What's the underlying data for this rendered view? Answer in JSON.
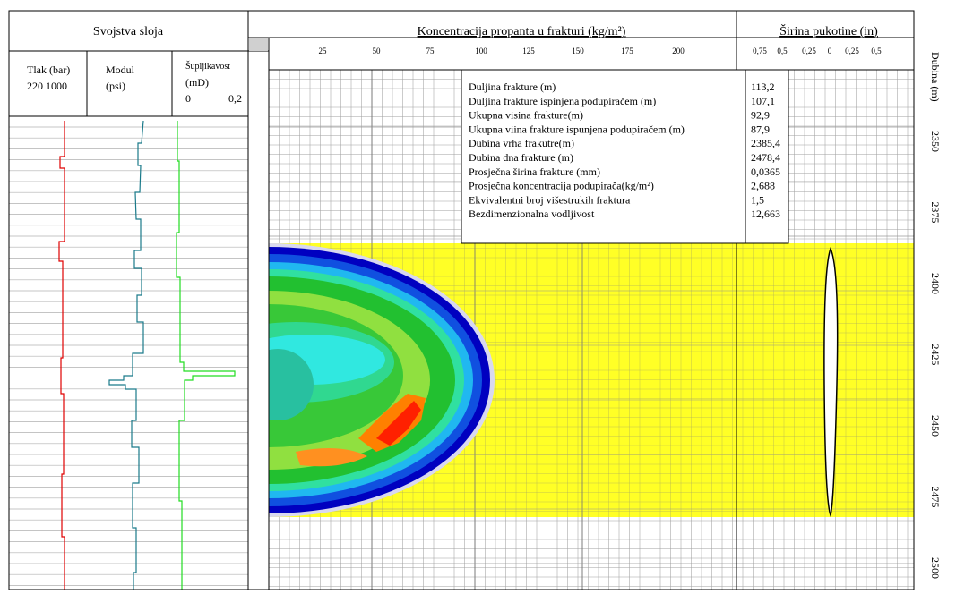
{
  "left_panel": {
    "title": "Svojstva sloja",
    "columns": [
      {
        "label": "Tlak (bar)",
        "scale": "220 1000"
      },
      {
        "label": "Modul",
        "unit": "(psi)"
      },
      {
        "label": "Šupljikavost",
        "unit": "(mD)",
        "scale_min": "0",
        "scale_max": "0,2"
      }
    ]
  },
  "concentration_panel": {
    "title": "Koncentracija propanta u frakturi (kg/m²)",
    "ticks": [
      "25",
      "50",
      "75",
      "100",
      "125",
      "150",
      "175",
      "200"
    ]
  },
  "width_panel": {
    "title": "Širina pukotine (in)",
    "ticks": [
      "0,75",
      "0,5",
      "0,25",
      "0",
      "0,25",
      "0,5"
    ]
  },
  "depth_panel": {
    "title": "Dubina (m)",
    "ticks": [
      "2350",
      "2375",
      "2400",
      "2425",
      "2450",
      "2475",
      "2500"
    ]
  },
  "summary_table": {
    "rows": [
      [
        "Duljina frakture (m)",
        "113,2"
      ],
      [
        "Duljina frakture ispinjena podupiračem (m)",
        "107,1"
      ],
      [
        "Ukupna visina frakture(m)",
        "92,9"
      ],
      [
        "Ukupna viina frakture ispunjena podupiračem (m)",
        "87,9"
      ],
      [
        "Dubina vrha frakutre(m)",
        "2385,4"
      ],
      [
        "Dubina dna frakture (m)",
        "2478,4"
      ],
      [
        "Prosječna širina frakture (mm)",
        "0,0365"
      ],
      [
        "Prosječna koncentracija podupirača(kg/m²)",
        "2,688"
      ],
      [
        "Ekvivalentni broj višestrukih fraktura",
        "1,5"
      ],
      [
        "Bezdimenzionalna vodljivost",
        "12,663"
      ]
    ]
  }
}
